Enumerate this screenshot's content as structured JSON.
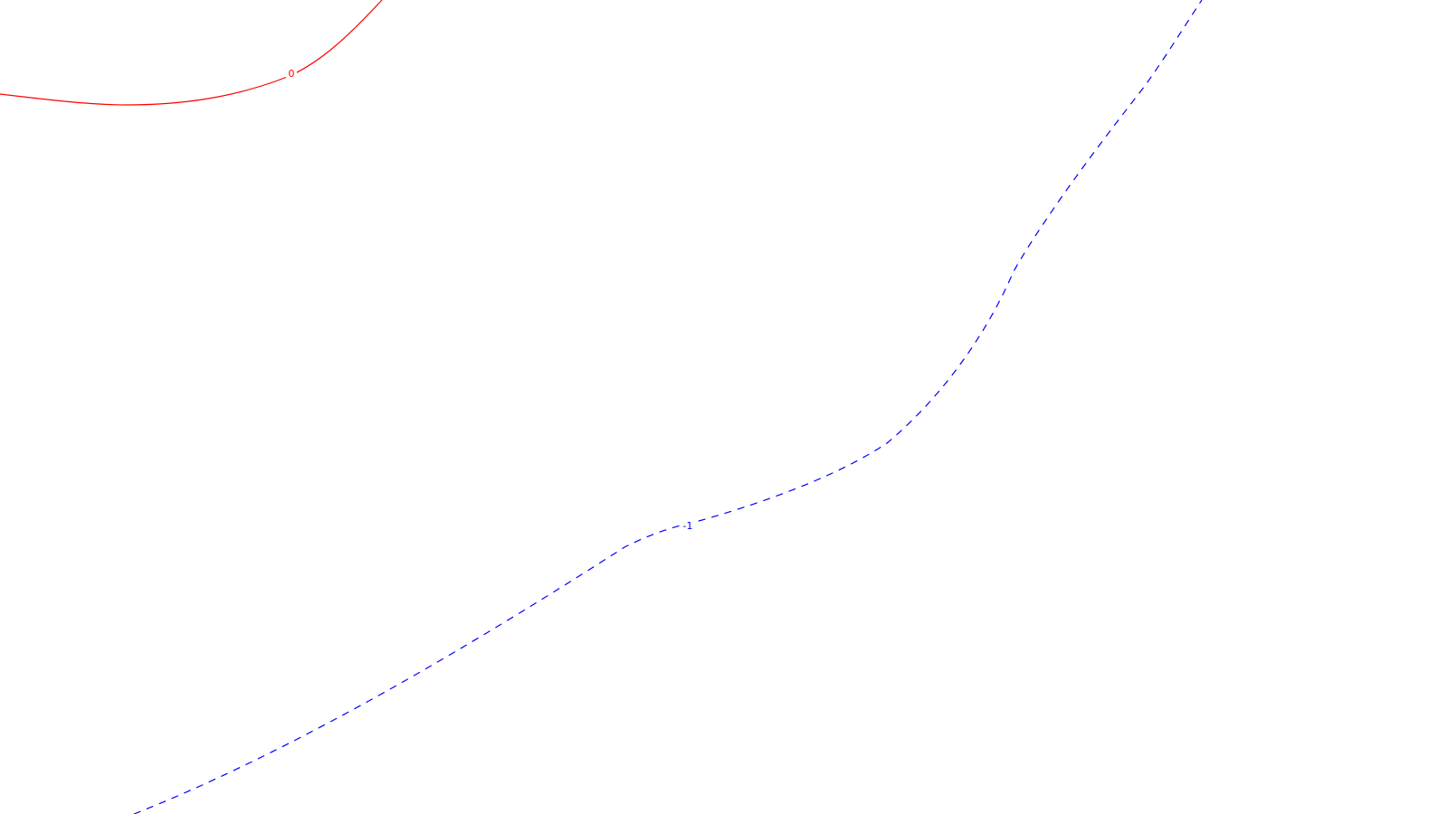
{
  "contours": [
    {
      "id": "contour-0",
      "level_label": "0",
      "color": "#ff0000",
      "line_style": "solid"
    },
    {
      "id": "contour-neg1",
      "level_label": "-1",
      "color": "#0000ff",
      "line_style": "dashed"
    }
  ]
}
